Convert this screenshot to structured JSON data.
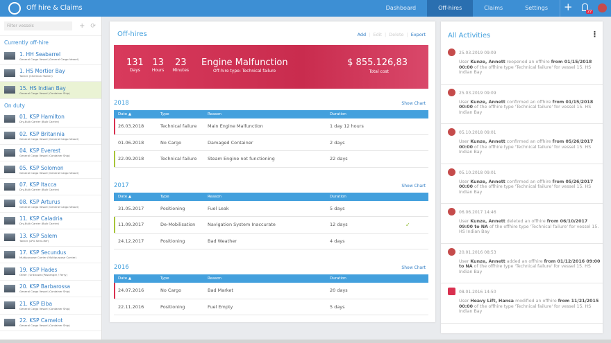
{
  "header": {
    "title": "Off hire & Claims",
    "nav": [
      "Dashboard",
      "Off-hires",
      "Claims",
      "Settings"
    ],
    "active_nav": 1,
    "badge": "27"
  },
  "sidebar": {
    "filter_placeholder": "Filter vessels",
    "sections": [
      {
        "title": "Currently off-hire",
        "vessels": [
          {
            "name": "1. HH Seabarrel",
            "type": "General Cargo Vessel (General Cargo Vessel)"
          },
          {
            "name": "1. HS Mortier Bay",
            "type": "Tanker (Chemical Tanker)"
          },
          {
            "name": "15. HS Indian Bay",
            "type": "General Cargo Vessel (Container Ship)",
            "selected": true
          }
        ]
      },
      {
        "title": "On duty",
        "vessels": [
          {
            "name": "01. KSP Hamilton",
            "type": "Dry-Bulk Carrier (Bulk Carrier)"
          },
          {
            "name": "02. KSP Britannia",
            "type": "General Cargo Vessel (General Cargo Vessel)"
          },
          {
            "name": "04. KSP Everest",
            "type": "General Cargo Vessel (Container Ship)"
          },
          {
            "name": "05. KSP Solomon",
            "type": "General Cargo Vessel (General Cargo Vessel)"
          },
          {
            "name": "07. KSP Itacca",
            "type": "Dry-Bulk Carrier (Bulk Carrier)"
          },
          {
            "name": "08. KSP Arturus",
            "type": "General Cargo Vessel (General Cargo Vessel)"
          },
          {
            "name": "11. KSP Caladria",
            "type": "Dry-Bulk Carrier (Bulk Carrier)"
          },
          {
            "name": "13. KSP Salem",
            "type": "Tanker (LPG Semi-Ref)"
          },
          {
            "name": "17. KSP Secundus",
            "type": "Multipurpose Carrier (Multipurpose Carrier)"
          },
          {
            "name": "19. KSP Hades",
            "type": "Other / Unknown (Passenger / Ferry)"
          },
          {
            "name": "20. KSP Barbarossa",
            "type": "General Cargo Vessel (Container Ship)"
          },
          {
            "name": "21. KSP Elba",
            "type": "General Cargo Vessel (Container Ship)"
          },
          {
            "name": "22. KSP Camelot",
            "type": "General Cargo Vessel (Container Ship)"
          }
        ]
      }
    ]
  },
  "offhires": {
    "title": "Off-hires",
    "actions": [
      "Add",
      "Edit",
      "Delete",
      "Export"
    ],
    "banner": {
      "stats": [
        {
          "value": "131",
          "unit": "Days"
        },
        {
          "value": "13",
          "unit": "Hours"
        },
        {
          "value": "23",
          "unit": "Minutes"
        }
      ],
      "reason": "Engine Malfunction",
      "type": "Off-hire type: Technical failure",
      "cost": "$ 855.126,83",
      "cost_label": "Total cost"
    },
    "show_chart": "Show Chart",
    "columns": [
      "Date ▲",
      "Type",
      "Reason",
      "Duration"
    ],
    "years": [
      {
        "year": "2018",
        "rows": [
          {
            "cells": [
              "26.03.2018",
              "Technical failure",
              "Main Engine Malfunction",
              "1 day 12 hours"
            ],
            "marker": "#d9304f"
          },
          {
            "cells": [
              "01.06.2018",
              "No Cargo",
              "Damaged Container",
              "2 days"
            ]
          },
          {
            "cells": [
              "22.09.2018",
              "Technical failure",
              "Steam Engine not functioning",
              "22 days"
            ],
            "marker": "#a8c43a"
          }
        ]
      },
      {
        "year": "2017",
        "rows": [
          {
            "cells": [
              "31.05.2017",
              "Positioning",
              "Fuel Leak",
              "5 days"
            ]
          },
          {
            "cells": [
              "11.09.2017",
              "De-Mobilisation",
              "Navigation System Inaccurate",
              "12 days"
            ],
            "marker": "#a8c43a",
            "check": true
          },
          {
            "cells": [
              "24.12.2017",
              "Positioning",
              "Bad Weather",
              "4 days"
            ]
          }
        ]
      },
      {
        "year": "2016",
        "rows": [
          {
            "cells": [
              "24.07.2016",
              "No Cargo",
              "Bad Market",
              "20 days"
            ],
            "marker": "#d9304f"
          },
          {
            "cells": [
              "22.11.2016",
              "Positioning",
              "Fuel Empty",
              "5 days"
            ]
          }
        ]
      }
    ]
  },
  "activities": {
    "title": "All Activities",
    "items": [
      {
        "date": "25.03.2019 09:09",
        "text": [
          "User ",
          "Kunze, Annett",
          " reopened an offhire ",
          "from 01/15/2018 00:00",
          " of the offhire type 'Technical failure' for vessel 15. HS Indian Bay"
        ]
      },
      {
        "date": "25.03.2019 09:09",
        "text": [
          "User ",
          "Kunze, Annett",
          " confirmed an offhire ",
          "from 01/15/2018 00:00",
          " of the offhire type 'Technical failure' for vessel 15. HS Indian Bay"
        ]
      },
      {
        "date": "05.10.2018 09:01",
        "text": [
          "User ",
          "Kunze, Annett",
          " confirmed an offhire ",
          "from 05/26/2017 00:00",
          " of the offhire type 'Technical failure' for vessel 15. HS Indian Bay"
        ]
      },
      {
        "date": "05.10.2018 09:01",
        "text": [
          "User ",
          "Kunze, Annett",
          " confirmed an offhire ",
          "from 05/26/2017 00:00",
          " of the offhire type 'Technical failure' for vessel 15. HS Indian Bay"
        ]
      },
      {
        "date": "06.06.2017 14:46",
        "text": [
          "User ",
          "Kunze, Annett",
          " deleted an offhire ",
          "from 06/10/2017 09:00 to NA",
          " of the offhire type 'Technical failure' for vessel 15. HS Indian Bay"
        ]
      },
      {
        "date": "20.01.2016 08:53",
        "text": [
          "User ",
          "Kunze, Annett",
          " added an offhire ",
          "from 01/12/2016 09:00 to NA",
          " of the offhire type 'Technical failure' for vessel 15. HS Indian Bay"
        ]
      },
      {
        "date": "08.01.2016 14:50",
        "text": [
          "User ",
          "Heavy Lift, Hansa",
          " modified an offhire ",
          "from 11/21/2015 00:00",
          " of the offhire type 'Technical failure' for vessel 15. HS Indian Bay"
        ]
      }
    ]
  }
}
